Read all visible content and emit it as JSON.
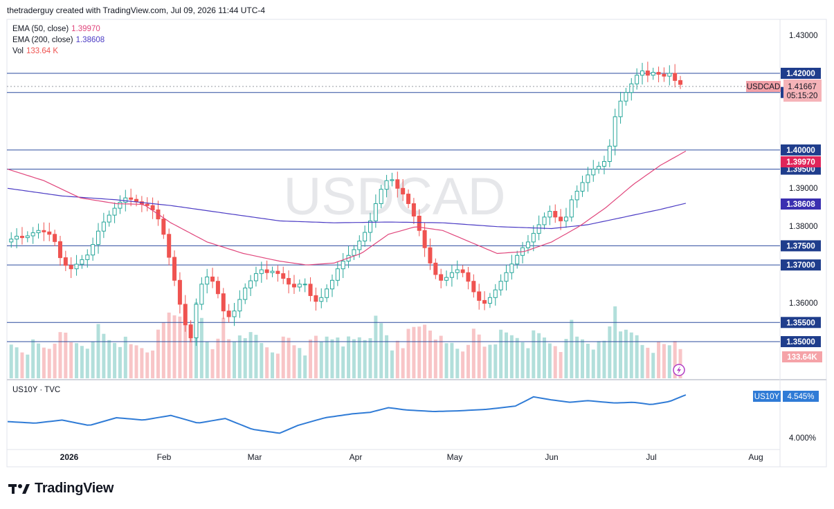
{
  "header": {
    "credit": "thetraderguy created with TradingView.com, Jul 09, 2026 11:44 UTC-4"
  },
  "watermark": "USDCAD",
  "legend": {
    "ema50_label": "EMA (50, close)",
    "ema50_value": "1.39970",
    "ema50_color": "#e0457b",
    "ema200_label": "EMA (200, close)",
    "ema200_value": "1.38608",
    "ema200_color": "#4a3ac4",
    "vol_label": "Vol",
    "vol_value": "133.64 K",
    "vol_color": "#ef5350"
  },
  "sub_pane": {
    "label": "US10Y · TVC",
    "badge_name": "US10Y",
    "badge_value": "4.545%",
    "tick_label": "4.000%"
  },
  "symbol_badge": {
    "name": "USDCAD",
    "price": "1.41667",
    "countdown": "05:15:20"
  },
  "brand": {
    "name": "TradingView"
  },
  "colors": {
    "up": "#26a69a",
    "down": "#ef5350",
    "hline": "#2a4a9e",
    "us10y": "#2f7bd6"
  },
  "chart_data": {
    "type": "candlestick",
    "symbol": "USDCAD",
    "x_labels": [
      "2026",
      "Feb",
      "Mar",
      "Apr",
      "May",
      "Jun",
      "Jul",
      "Aug"
    ],
    "y_ticks": [
      "1.43000",
      "1.39000",
      "1.38000",
      "1.36000"
    ],
    "horizontal_levels": [
      "1.42000",
      "1.41500",
      "1.40000",
      "1.39500",
      "1.37500",
      "1.37000",
      "1.35500",
      "1.35000"
    ],
    "ema50_last": "1.39970",
    "ema200_last": "1.38608",
    "volume_last": "133.64K",
    "last_price": "1.41667",
    "us10y_last": "4.545%",
    "price_path": [
      [
        0,
        1.376
      ],
      [
        6,
        1.3775
      ],
      [
        10,
        1.377
      ],
      [
        14,
        1.3782
      ],
      [
        18,
        1.379
      ],
      [
        22,
        1.3785
      ],
      [
        26,
        1.3775
      ],
      [
        31,
        1.3705
      ],
      [
        36,
        1.369
      ],
      [
        41,
        1.371
      ],
      [
        46,
        1.373
      ],
      [
        52,
        1.38
      ],
      [
        57,
        1.383
      ],
      [
        62,
        1.386
      ],
      [
        66,
        1.3875
      ],
      [
        70,
        1.387
      ],
      [
        74,
        1.386
      ],
      [
        78,
        1.3855
      ],
      [
        82,
        1.384
      ],
      [
        86,
        1.38
      ],
      [
        90,
        1.372
      ],
      [
        94,
        1.364
      ],
      [
        98,
        1.3555
      ],
      [
        102,
        1.351
      ],
      [
        104,
        1.358
      ],
      [
        108,
        1.365
      ],
      [
        112,
        1.3675
      ],
      [
        116,
        1.364
      ],
      [
        120,
        1.358
      ],
      [
        124,
        1.356
      ],
      [
        128,
        1.36
      ],
      [
        132,
        1.364
      ],
      [
        136,
        1.3665
      ],
      [
        140,
        1.369
      ],
      [
        144,
        1.368
      ],
      [
        148,
        1.3685
      ],
      [
        152,
        1.367
      ],
      [
        156,
        1.365
      ],
      [
        160,
        1.364
      ],
      [
        164,
        1.366
      ],
      [
        168,
        1.362
      ],
      [
        172,
        1.36
      ],
      [
        176,
        1.363
      ],
      [
        180,
        1.366
      ],
      [
        184,
        1.37
      ],
      [
        188,
        1.372
      ],
      [
        192,
        1.374
      ],
      [
        196,
        1.377
      ],
      [
        200,
        1.38
      ],
      [
        204,
        1.386
      ],
      [
        208,
        1.391
      ],
      [
        212,
        1.393
      ],
      [
        216,
        1.39
      ],
      [
        220,
        1.388
      ],
      [
        224,
        1.384
      ],
      [
        228,
        1.379
      ],
      [
        232,
        1.373
      ],
      [
        236,
        1.368
      ],
      [
        240,
        1.366
      ],
      [
        244,
        1.367
      ],
      [
        248,
        1.369
      ],
      [
        252,
        1.368
      ],
      [
        256,
        1.365
      ],
      [
        260,
        1.361
      ],
      [
        264,
        1.36
      ],
      [
        268,
        1.362
      ],
      [
        272,
        1.365
      ],
      [
        276,
        1.368
      ],
      [
        280,
        1.371
      ],
      [
        284,
        1.374
      ],
      [
        288,
        1.376
      ],
      [
        292,
        1.379
      ],
      [
        296,
        1.382
      ],
      [
        300,
        1.384
      ],
      [
        304,
        1.382
      ],
      [
        308,
        1.381
      ],
      [
        312,
        1.387
      ],
      [
        316,
        1.39
      ],
      [
        320,
        1.393
      ],
      [
        324,
        1.395
      ],
      [
        328,
        1.396
      ],
      [
        332,
        1.398
      ],
      [
        335,
        1.407
      ],
      [
        338,
        1.412
      ],
      [
        342,
        1.415
      ],
      [
        346,
        1.418
      ],
      [
        350,
        1.421
      ],
      [
        354,
        1.4195
      ],
      [
        358,
        1.4205
      ],
      [
        362,
        1.419
      ],
      [
        366,
        1.42
      ],
      [
        370,
        1.4175
      ],
      [
        374,
        1.4167
      ]
    ],
    "ema50_path": [
      [
        0,
        1.395
      ],
      [
        20,
        1.392
      ],
      [
        40,
        1.3875
      ],
      [
        60,
        1.386
      ],
      [
        75,
        1.3858
      ],
      [
        90,
        1.381
      ],
      [
        110,
        1.376
      ],
      [
        130,
        1.373
      ],
      [
        150,
        1.371
      ],
      [
        165,
        1.37
      ],
      [
        180,
        1.3705
      ],
      [
        195,
        1.373
      ],
      [
        210,
        1.378
      ],
      [
        225,
        1.38
      ],
      [
        240,
        1.379
      ],
      [
        255,
        1.376
      ],
      [
        270,
        1.373
      ],
      [
        285,
        1.3735
      ],
      [
        300,
        1.376
      ],
      [
        315,
        1.38
      ],
      [
        330,
        1.385
      ],
      [
        345,
        1.391
      ],
      [
        360,
        1.396
      ],
      [
        374,
        1.3997
      ]
    ],
    "ema200_path": [
      [
        0,
        1.39
      ],
      [
        30,
        1.388
      ],
      [
        60,
        1.387
      ],
      [
        90,
        1.3855
      ],
      [
        120,
        1.3835
      ],
      [
        150,
        1.3815
      ],
      [
        180,
        1.381
      ],
      [
        210,
        1.3812
      ],
      [
        240,
        1.381
      ],
      [
        270,
        1.38
      ],
      [
        300,
        1.3795
      ],
      [
        320,
        1.3805
      ],
      [
        340,
        1.3825
      ],
      [
        360,
        1.3845
      ],
      [
        374,
        1.3861
      ]
    ],
    "us10y_path": [
      [
        0,
        4.2
      ],
      [
        15,
        4.18
      ],
      [
        30,
        4.22
      ],
      [
        45,
        4.15
      ],
      [
        60,
        4.25
      ],
      [
        75,
        4.22
      ],
      [
        90,
        4.28
      ],
      [
        105,
        4.18
      ],
      [
        120,
        4.24
      ],
      [
        135,
        4.1
      ],
      [
        150,
        4.05
      ],
      [
        160,
        4.15
      ],
      [
        175,
        4.25
      ],
      [
        190,
        4.3
      ],
      [
        200,
        4.32
      ],
      [
        210,
        4.38
      ],
      [
        220,
        4.35
      ],
      [
        235,
        4.33
      ],
      [
        250,
        4.34
      ],
      [
        265,
        4.36
      ],
      [
        280,
        4.4
      ],
      [
        290,
        4.52
      ],
      [
        300,
        4.48
      ],
      [
        310,
        4.45
      ],
      [
        320,
        4.47
      ],
      [
        335,
        4.44
      ],
      [
        345,
        4.45
      ],
      [
        355,
        4.42
      ],
      [
        365,
        4.46
      ],
      [
        374,
        4.545
      ]
    ]
  }
}
